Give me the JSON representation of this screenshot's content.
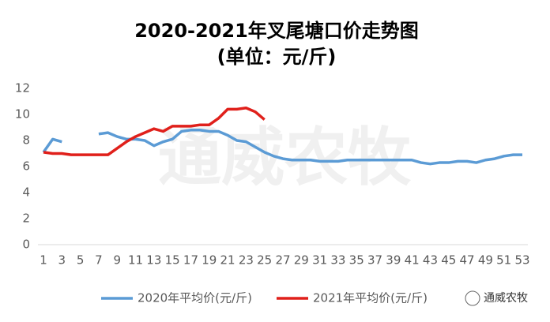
{
  "chart_data": {
    "type": "line",
    "title": "2020-2021年叉尾塘口价走势图",
    "subtitle": "(单位：元/斤)",
    "watermark": "通威农牧",
    "source": "通威农牧",
    "categories": [
      1,
      null,
      3,
      null,
      5,
      null,
      7,
      null,
      9,
      null,
      11,
      null,
      13,
      null,
      15,
      null,
      17,
      null,
      19,
      null,
      21,
      null,
      23,
      null,
      25,
      null,
      27,
      null,
      29,
      null,
      31,
      null,
      33,
      null,
      35,
      null,
      37,
      null,
      39,
      null,
      41,
      null,
      43,
      null,
      45,
      null,
      47,
      null,
      49,
      null,
      51,
      null,
      53
    ],
    "ylim": [
      0,
      12
    ],
    "yticks": [
      0,
      2,
      4,
      6,
      8,
      10,
      12
    ],
    "grid": false,
    "legend": "bottom",
    "series": [
      {
        "name": "2020年平均价(元/斤)",
        "color": "#5b9bd5",
        "values": [
          7.1,
          8.1,
          7.9,
          null,
          null,
          null,
          8.5,
          8.6,
          8.3,
          8.1,
          8.1,
          8.0,
          7.6,
          7.9,
          8.1,
          8.7,
          8.8,
          8.8,
          8.7,
          8.7,
          8.4,
          8.0,
          7.9,
          7.5,
          7.1,
          6.8,
          6.6,
          6.5,
          6.5,
          6.5,
          6.4,
          6.4,
          6.4,
          6.5,
          6.5,
          6.5,
          6.5,
          6.5,
          6.5,
          6.5,
          6.5,
          6.3,
          6.2,
          6.3,
          6.3,
          6.4,
          6.4,
          6.3,
          6.5,
          6.6,
          6.8,
          6.9,
          6.9
        ]
      },
      {
        "name": "2021年平均价(元/斤)",
        "color": "#e0201b",
        "values": [
          7.1,
          7.0,
          7.0,
          6.9,
          6.9,
          6.9,
          6.9,
          6.9,
          7.4,
          7.9,
          8.3,
          8.6,
          8.9,
          8.7,
          9.1,
          9.1,
          9.1,
          9.2,
          9.2,
          9.7,
          10.4,
          10.4,
          10.5,
          10.2,
          9.6,
          null,
          null,
          null,
          null,
          null,
          null,
          null,
          null,
          null,
          null,
          null,
          null,
          null,
          null,
          null,
          null,
          null,
          null,
          null,
          null,
          null,
          null,
          null,
          null,
          null,
          null,
          null,
          null
        ]
      }
    ]
  }
}
